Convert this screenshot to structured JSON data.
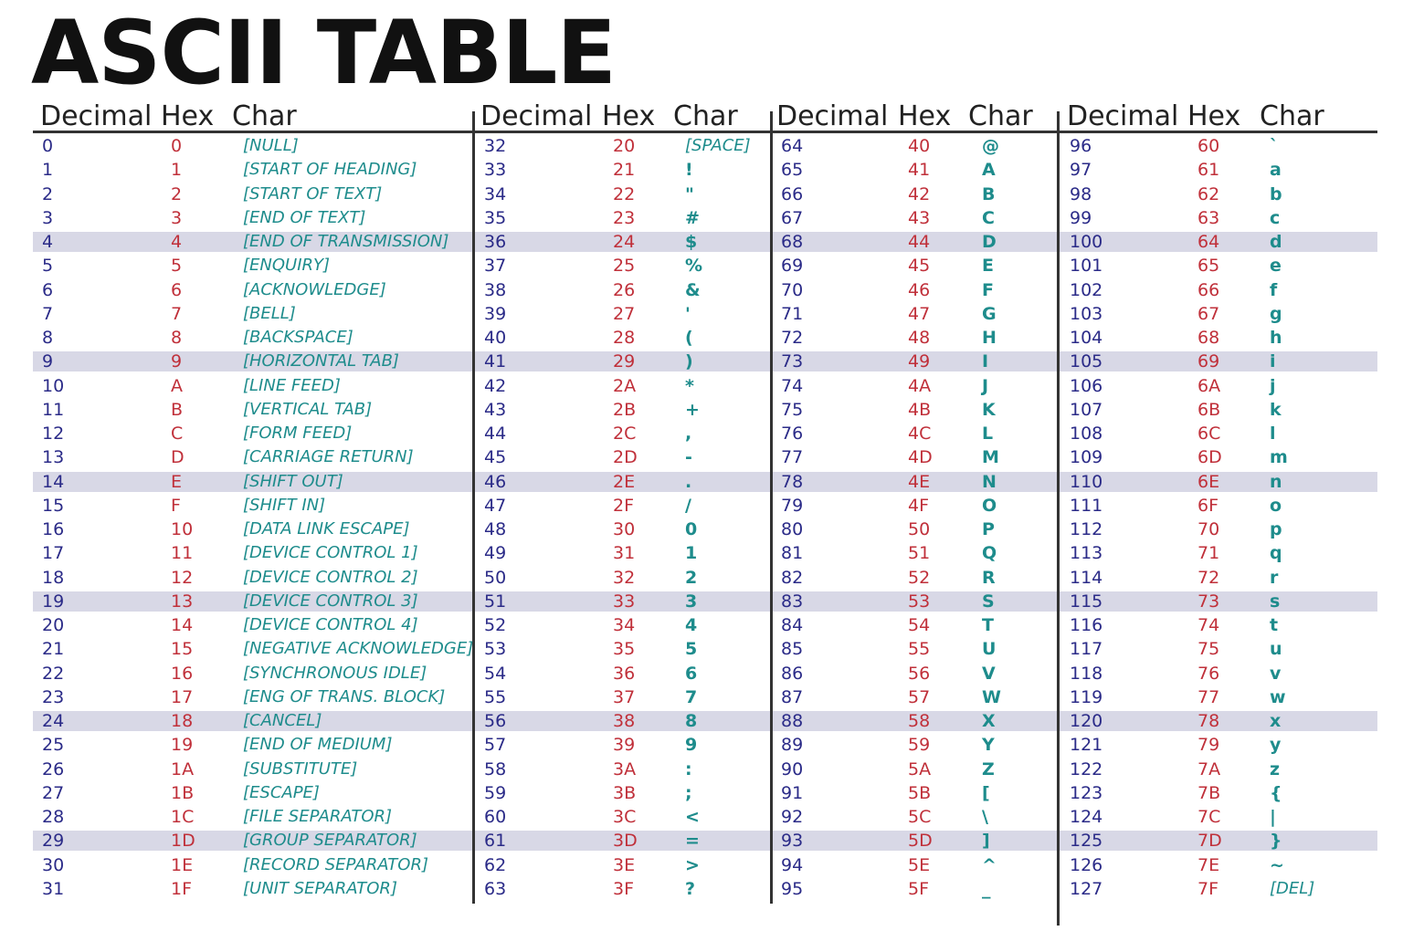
{
  "title": "ASCII TABLE",
  "headers": [
    "Decimal",
    "Hex",
    "Char"
  ],
  "colors": {
    "decimal": "#2b2b88",
    "hex": "#c0303a",
    "char": "#1e8c8c",
    "band": "#d8d8e6"
  },
  "highlighted_rows": [
    4,
    9,
    14,
    19,
    24,
    29
  ],
  "columns": [
    {
      "rows": [
        {
          "dec": "0",
          "hex": "0",
          "char": "[NULL]"
        },
        {
          "dec": "1",
          "hex": "1",
          "char": "[START OF HEADING]"
        },
        {
          "dec": "2",
          "hex": "2",
          "char": "[START OF TEXT]"
        },
        {
          "dec": "3",
          "hex": "3",
          "char": "[END OF TEXT]"
        },
        {
          "dec": "4",
          "hex": "4",
          "char": "[END OF TRANSMISSION]"
        },
        {
          "dec": "5",
          "hex": "5",
          "char": "[ENQUIRY]"
        },
        {
          "dec": "6",
          "hex": "6",
          "char": "[ACKNOWLEDGE]"
        },
        {
          "dec": "7",
          "hex": "7",
          "char": "[BELL]"
        },
        {
          "dec": "8",
          "hex": "8",
          "char": "[BACKSPACE]"
        },
        {
          "dec": "9",
          "hex": "9",
          "char": "[HORIZONTAL TAB]"
        },
        {
          "dec": "10",
          "hex": "A",
          "char": "[LINE FEED]"
        },
        {
          "dec": "11",
          "hex": "B",
          "char": "[VERTICAL TAB]"
        },
        {
          "dec": "12",
          "hex": "C",
          "char": "[FORM FEED]"
        },
        {
          "dec": "13",
          "hex": "D",
          "char": "[CARRIAGE RETURN]"
        },
        {
          "dec": "14",
          "hex": "E",
          "char": "[SHIFT OUT]"
        },
        {
          "dec": "15",
          "hex": "F",
          "char": "[SHIFT IN]"
        },
        {
          "dec": "16",
          "hex": "10",
          "char": "[DATA LINK ESCAPE]"
        },
        {
          "dec": "17",
          "hex": "11",
          "char": "[DEVICE CONTROL 1]"
        },
        {
          "dec": "18",
          "hex": "12",
          "char": "[DEVICE CONTROL 2]"
        },
        {
          "dec": "19",
          "hex": "13",
          "char": "[DEVICE CONTROL 3]"
        },
        {
          "dec": "20",
          "hex": "14",
          "char": "[DEVICE CONTROL 4]"
        },
        {
          "dec": "21",
          "hex": "15",
          "char": "[NEGATIVE ACKNOWLEDGE]"
        },
        {
          "dec": "22",
          "hex": "16",
          "char": "[SYNCHRONOUS IDLE]"
        },
        {
          "dec": "23",
          "hex": "17",
          "char": "[ENG OF TRANS. BLOCK]"
        },
        {
          "dec": "24",
          "hex": "18",
          "char": "[CANCEL]"
        },
        {
          "dec": "25",
          "hex": "19",
          "char": "[END OF MEDIUM]"
        },
        {
          "dec": "26",
          "hex": "1A",
          "char": "[SUBSTITUTE]"
        },
        {
          "dec": "27",
          "hex": "1B",
          "char": "[ESCAPE]"
        },
        {
          "dec": "28",
          "hex": "1C",
          "char": "[FILE SEPARATOR]"
        },
        {
          "dec": "29",
          "hex": "1D",
          "char": "[GROUP SEPARATOR]"
        },
        {
          "dec": "30",
          "hex": "1E",
          "char": "[RECORD SEPARATOR]"
        },
        {
          "dec": "31",
          "hex": "1F",
          "char": "[UNIT SEPARATOR]"
        }
      ]
    },
    {
      "rows": [
        {
          "dec": "32",
          "hex": "20",
          "char": "[SPACE]"
        },
        {
          "dec": "33",
          "hex": "21",
          "char": "!"
        },
        {
          "dec": "34",
          "hex": "22",
          "char": "\""
        },
        {
          "dec": "35",
          "hex": "23",
          "char": "#"
        },
        {
          "dec": "36",
          "hex": "24",
          "char": "$"
        },
        {
          "dec": "37",
          "hex": "25",
          "char": "%"
        },
        {
          "dec": "38",
          "hex": "26",
          "char": "&"
        },
        {
          "dec": "39",
          "hex": "27",
          "char": "'"
        },
        {
          "dec": "40",
          "hex": "28",
          "char": "("
        },
        {
          "dec": "41",
          "hex": "29",
          "char": ")"
        },
        {
          "dec": "42",
          "hex": "2A",
          "char": "*"
        },
        {
          "dec": "43",
          "hex": "2B",
          "char": "+"
        },
        {
          "dec": "44",
          "hex": "2C",
          "char": ","
        },
        {
          "dec": "45",
          "hex": "2D",
          "char": "-"
        },
        {
          "dec": "46",
          "hex": "2E",
          "char": "."
        },
        {
          "dec": "47",
          "hex": "2F",
          "char": "/"
        },
        {
          "dec": "48",
          "hex": "30",
          "char": "0"
        },
        {
          "dec": "49",
          "hex": "31",
          "char": "1"
        },
        {
          "dec": "50",
          "hex": "32",
          "char": "2"
        },
        {
          "dec": "51",
          "hex": "33",
          "char": "3"
        },
        {
          "dec": "52",
          "hex": "34",
          "char": "4"
        },
        {
          "dec": "53",
          "hex": "35",
          "char": "5"
        },
        {
          "dec": "54",
          "hex": "36",
          "char": "6"
        },
        {
          "dec": "55",
          "hex": "37",
          "char": "7"
        },
        {
          "dec": "56",
          "hex": "38",
          "char": "8"
        },
        {
          "dec": "57",
          "hex": "39",
          "char": "9"
        },
        {
          "dec": "58",
          "hex": "3A",
          "char": ":"
        },
        {
          "dec": "59",
          "hex": "3B",
          "char": ";"
        },
        {
          "dec": "60",
          "hex": "3C",
          "char": "<"
        },
        {
          "dec": "61",
          "hex": "3D",
          "char": "="
        },
        {
          "dec": "62",
          "hex": "3E",
          "char": ">"
        },
        {
          "dec": "63",
          "hex": "3F",
          "char": "?"
        }
      ]
    },
    {
      "rows": [
        {
          "dec": "64",
          "hex": "40",
          "char": "@"
        },
        {
          "dec": "65",
          "hex": "41",
          "char": "A"
        },
        {
          "dec": "66",
          "hex": "42",
          "char": "B"
        },
        {
          "dec": "67",
          "hex": "43",
          "char": "C"
        },
        {
          "dec": "68",
          "hex": "44",
          "char": "D"
        },
        {
          "dec": "69",
          "hex": "45",
          "char": "E"
        },
        {
          "dec": "70",
          "hex": "46",
          "char": "F"
        },
        {
          "dec": "71",
          "hex": "47",
          "char": "G"
        },
        {
          "dec": "72",
          "hex": "48",
          "char": "H"
        },
        {
          "dec": "73",
          "hex": "49",
          "char": "I"
        },
        {
          "dec": "74",
          "hex": "4A",
          "char": "J"
        },
        {
          "dec": "75",
          "hex": "4B",
          "char": "K"
        },
        {
          "dec": "76",
          "hex": "4C",
          "char": "L"
        },
        {
          "dec": "77",
          "hex": "4D",
          "char": "M"
        },
        {
          "dec": "78",
          "hex": "4E",
          "char": "N"
        },
        {
          "dec": "79",
          "hex": "4F",
          "char": "O"
        },
        {
          "dec": "80",
          "hex": "50",
          "char": "P"
        },
        {
          "dec": "81",
          "hex": "51",
          "char": "Q"
        },
        {
          "dec": "82",
          "hex": "52",
          "char": "R"
        },
        {
          "dec": "83",
          "hex": "53",
          "char": "S"
        },
        {
          "dec": "84",
          "hex": "54",
          "char": "T"
        },
        {
          "dec": "85",
          "hex": "55",
          "char": "U"
        },
        {
          "dec": "86",
          "hex": "56",
          "char": "V"
        },
        {
          "dec": "87",
          "hex": "57",
          "char": "W"
        },
        {
          "dec": "88",
          "hex": "58",
          "char": "X"
        },
        {
          "dec": "89",
          "hex": "59",
          "char": "Y"
        },
        {
          "dec": "90",
          "hex": "5A",
          "char": "Z"
        },
        {
          "dec": "91",
          "hex": "5B",
          "char": "["
        },
        {
          "dec": "92",
          "hex": "5C",
          "char": "\\"
        },
        {
          "dec": "93",
          "hex": "5D",
          "char": "]"
        },
        {
          "dec": "94",
          "hex": "5E",
          "char": "^"
        },
        {
          "dec": "95",
          "hex": "5F",
          "char": "_"
        }
      ]
    },
    {
      "rows": [
        {
          "dec": "96",
          "hex": "60",
          "char": "`"
        },
        {
          "dec": "97",
          "hex": "61",
          "char": "a"
        },
        {
          "dec": "98",
          "hex": "62",
          "char": "b"
        },
        {
          "dec": "99",
          "hex": "63",
          "char": "c"
        },
        {
          "dec": "100",
          "hex": "64",
          "char": "d"
        },
        {
          "dec": "101",
          "hex": "65",
          "char": "e"
        },
        {
          "dec": "102",
          "hex": "66",
          "char": "f"
        },
        {
          "dec": "103",
          "hex": "67",
          "char": "g"
        },
        {
          "dec": "104",
          "hex": "68",
          "char": "h"
        },
        {
          "dec": "105",
          "hex": "69",
          "char": "i"
        },
        {
          "dec": "106",
          "hex": "6A",
          "char": "j"
        },
        {
          "dec": "107",
          "hex": "6B",
          "char": "k"
        },
        {
          "dec": "108",
          "hex": "6C",
          "char": "l"
        },
        {
          "dec": "109",
          "hex": "6D",
          "char": "m"
        },
        {
          "dec": "110",
          "hex": "6E",
          "char": "n"
        },
        {
          "dec": "111",
          "hex": "6F",
          "char": "o"
        },
        {
          "dec": "112",
          "hex": "70",
          "char": "p"
        },
        {
          "dec": "113",
          "hex": "71",
          "char": "q"
        },
        {
          "dec": "114",
          "hex": "72",
          "char": "r"
        },
        {
          "dec": "115",
          "hex": "73",
          "char": "s"
        },
        {
          "dec": "116",
          "hex": "74",
          "char": "t"
        },
        {
          "dec": "117",
          "hex": "75",
          "char": "u"
        },
        {
          "dec": "118",
          "hex": "76",
          "char": "v"
        },
        {
          "dec": "119",
          "hex": "77",
          "char": "w"
        },
        {
          "dec": "120",
          "hex": "78",
          "char": "x"
        },
        {
          "dec": "121",
          "hex": "79",
          "char": "y"
        },
        {
          "dec": "122",
          "hex": "7A",
          "char": "z"
        },
        {
          "dec": "123",
          "hex": "7B",
          "char": "{"
        },
        {
          "dec": "124",
          "hex": "7C",
          "char": "|"
        },
        {
          "dec": "125",
          "hex": "7D",
          "char": "}"
        },
        {
          "dec": "126",
          "hex": "7E",
          "char": "~"
        },
        {
          "dec": "127",
          "hex": "7F",
          "char": "[DEL]"
        }
      ]
    }
  ]
}
